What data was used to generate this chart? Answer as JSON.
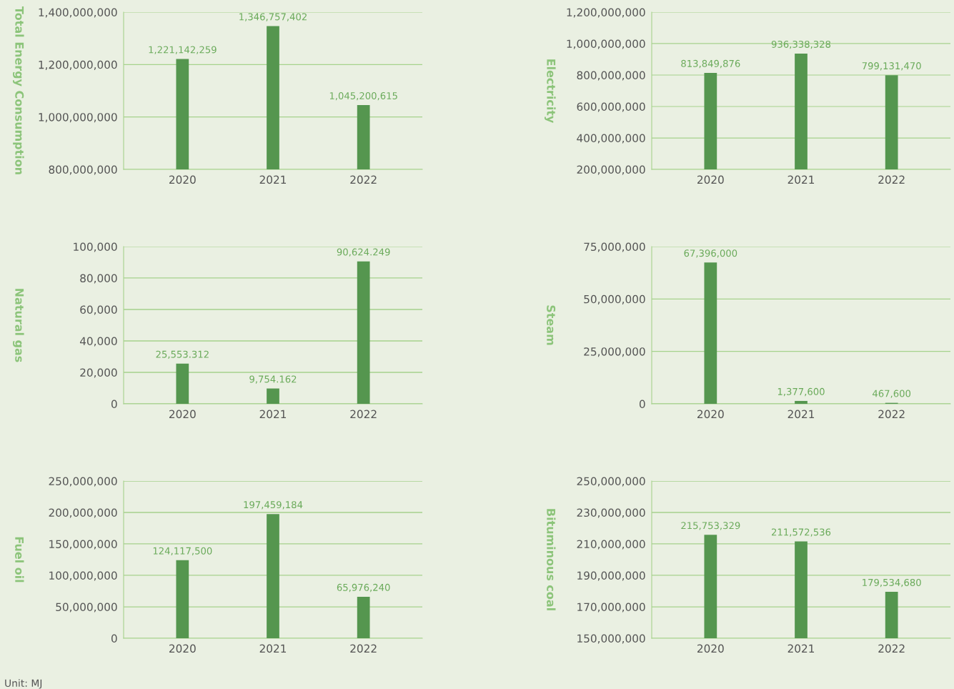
{
  "chart_data": [
    {
      "type": "bar",
      "ylabel": "Total Energy Consumption",
      "categories": [
        "2020",
        "2021",
        "2022"
      ],
      "values": [
        1221142259,
        1346757402,
        1045200615
      ],
      "value_labels": [
        "1,221,142,259",
        "1,346,757,402",
        "1,045,200,615"
      ],
      "color": "#55964f",
      "ylim": [
        800000000,
        1400000000
      ],
      "yticks": [
        {
          "value": 800000000,
          "label": "800,000,000"
        },
        {
          "value": 1000000000,
          "label": "1,000,000,000"
        },
        {
          "value": 1200000000,
          "label": "1,200,000,000"
        },
        {
          "value": 1400000000,
          "label": "1,400,000,000"
        }
      ],
      "grid": "y",
      "legend": false
    },
    {
      "type": "bar",
      "ylabel": "Electricity",
      "categories": [
        "2020",
        "2021",
        "2022"
      ],
      "values": [
        813849876,
        936338328,
        799131470
      ],
      "value_labels": [
        "813,849,876",
        "936,338,328",
        "799,131,470"
      ],
      "color": "#55964f",
      "ylim": [
        200000000,
        1200000000
      ],
      "yticks": [
        {
          "value": 200000000,
          "label": "200,000,000"
        },
        {
          "value": 400000000,
          "label": "400,000,000"
        },
        {
          "value": 600000000,
          "label": "600,000,000"
        },
        {
          "value": 800000000,
          "label": "800,000,000"
        },
        {
          "value": 1000000000,
          "label": "1,000,000,000"
        },
        {
          "value": 1200000000,
          "label": "1,200,000,000"
        }
      ],
      "grid": "y",
      "legend": false
    },
    {
      "type": "bar",
      "ylabel": "Natural gas",
      "categories": [
        "2020",
        "2021",
        "2022"
      ],
      "values": [
        25553.312,
        9754.162,
        90624.249
      ],
      "value_labels": [
        "25,553.312",
        "9,754.162",
        "90,624.249"
      ],
      "color": "#55964f",
      "ylim": [
        0,
        100000
      ],
      "yticks": [
        0,
        {
          "value": 20000,
          "label": "20,000"
        },
        {
          "value": 40000,
          "label": "40,000"
        },
        {
          "value": 60000,
          "label": "60,000"
        },
        {
          "value": 80000,
          "label": "80,000"
        },
        {
          "value": 100000,
          "label": "100,000"
        }
      ],
      "grid": "y",
      "legend": false
    },
    {
      "type": "bar",
      "ylabel": "Steam",
      "categories": [
        "2020",
        "2021",
        "2022"
      ],
      "values": [
        67396000,
        1377600,
        467600
      ],
      "value_labels": [
        "67,396,000",
        "1,377,600",
        "467,600"
      ],
      "color": "#55964f",
      "ylim": [
        0,
        75000000
      ],
      "yticks": [
        0,
        {
          "value": 25000000,
          "label": "25,000,000"
        },
        {
          "value": 50000000,
          "label": "50,000,000"
        },
        {
          "value": 75000000,
          "label": "75,000,000"
        }
      ],
      "grid": "y",
      "legend": false
    },
    {
      "type": "bar",
      "ylabel": "Fuel oil",
      "categories": [
        "2020",
        "2021",
        "2022"
      ],
      "values": [
        124117500,
        197459184,
        65976240
      ],
      "value_labels": [
        "124,117,500",
        "197,459,184",
        "65,976,240"
      ],
      "color": "#55964f",
      "ylim": [
        0,
        250000000
      ],
      "yticks": [
        0,
        {
          "value": 50000000,
          "label": "50,000,000"
        },
        {
          "value": 100000000,
          "label": "100,000,000"
        },
        {
          "value": 150000000,
          "label": "150,000,000"
        },
        {
          "value": 200000000,
          "label": "200,000,000"
        },
        {
          "value": 250000000,
          "label": "250,000,000"
        }
      ],
      "grid": "y",
      "legend": false,
      "annotations": [
        "Unit: MJ"
      ]
    },
    {
      "type": "bar",
      "ylabel": "Bituminous coal",
      "categories": [
        "2020",
        "2021",
        "2022"
      ],
      "values": [
        215753329,
        211572536,
        179534680
      ],
      "value_labels": [
        "215,753,329",
        "211,572,536",
        "179,534,680"
      ],
      "color": "#55964f",
      "ylim": [
        150000000,
        250000000
      ],
      "yticks": [
        {
          "value": 150000000,
          "label": "150,000,000"
        },
        {
          "value": 170000000,
          "label": "170,000,000"
        },
        {
          "value": 190000000,
          "label": "190,000,000"
        },
        {
          "value": 210000000,
          "label": "210,000,000"
        },
        {
          "value": 230000000,
          "label": "230,000,000"
        },
        {
          "value": 250000000,
          "label": "250,000,000"
        }
      ],
      "grid": "y",
      "legend": false
    }
  ]
}
